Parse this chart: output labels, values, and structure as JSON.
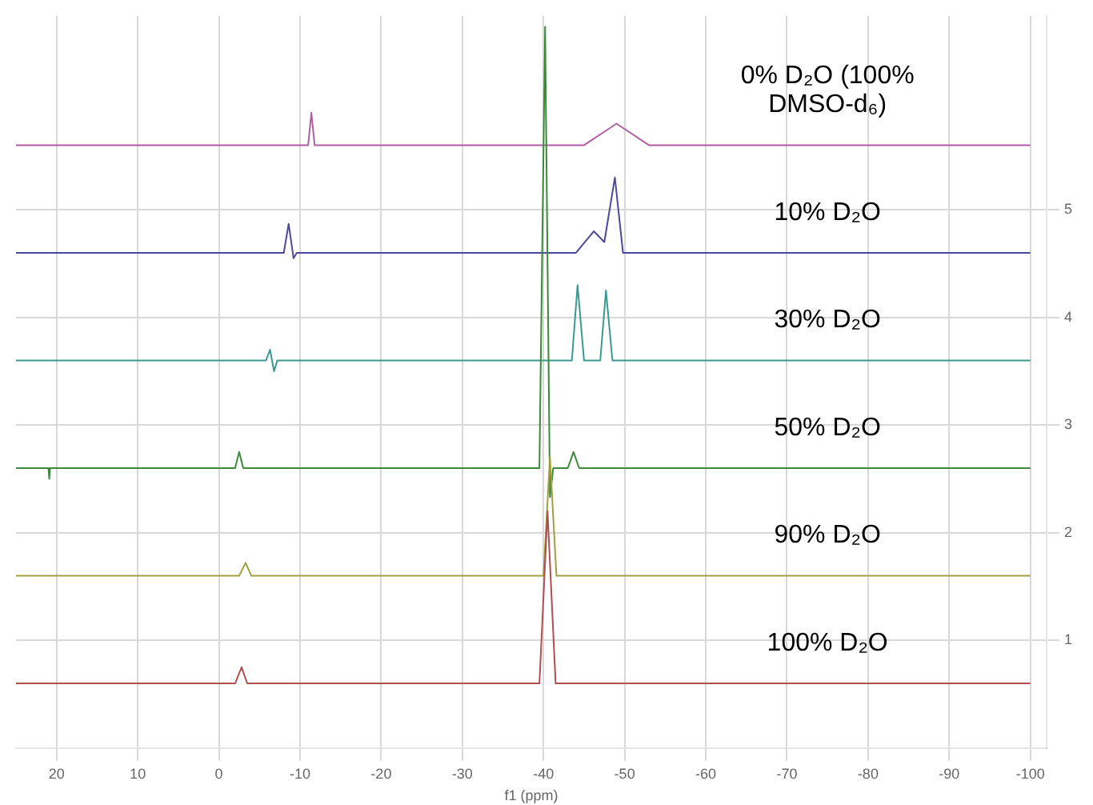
{
  "chart_data": {
    "type": "line",
    "xlabel": "f1 (ppm)",
    "xlim": [
      25,
      -102
    ],
    "xticks": [
      20,
      10,
      0,
      -10,
      -20,
      -30,
      -40,
      -50,
      -60,
      -70,
      -80,
      -90,
      -100
    ],
    "ylim": [
      0,
      6.8
    ],
    "yticks": [
      1,
      2,
      3,
      4,
      5
    ],
    "grid": true,
    "legend": false,
    "marker": "none",
    "series": [
      {
        "name": "100% D₂O",
        "color": "#b05050",
        "x": [
          25,
          -2,
          -2.8,
          -3.5,
          -39.5,
          -40.5,
          -41.5,
          -100
        ],
        "values": [
          0.6,
          0.6,
          0.75,
          0.6,
          0.6,
          2.2,
          0.6,
          0.6
        ]
      },
      {
        "name": "90% D₂O",
        "color": "#a0a040",
        "x": [
          25,
          -2.5,
          -3.3,
          -4,
          -40,
          -40.8,
          -41.6,
          -100
        ],
        "values": [
          1.6,
          1.6,
          1.72,
          1.6,
          1.6,
          2.7,
          1.6,
          1.6
        ]
      },
      {
        "name": "50% D₂O",
        "color": "#3a8a3a",
        "x": [
          25,
          21,
          20.9,
          20.8,
          -2,
          -2.5,
          -3,
          -39.5,
          -40.2,
          -40.8,
          -41.2,
          -43,
          -43.7,
          -44.4,
          -100
        ],
        "values": [
          2.6,
          2.6,
          2.5,
          2.6,
          2.6,
          2.75,
          2.6,
          2.6,
          6.7,
          2.33,
          2.6,
          2.6,
          2.75,
          2.6,
          2.6
        ]
      },
      {
        "name": "30% D₂O",
        "color": "#3a9a90",
        "x": [
          25,
          -5.8,
          -6.3,
          -6.8,
          -7.2,
          -43.5,
          -44.2,
          -45,
          -47,
          -47.7,
          -48.5,
          -100
        ],
        "values": [
          3.6,
          3.6,
          3.7,
          3.5,
          3.6,
          3.6,
          4.3,
          3.6,
          3.6,
          4.25,
          3.6,
          3.6
        ]
      },
      {
        "name": "10% D₂O",
        "color": "#4a4a9a",
        "x": [
          25,
          -8,
          -8.6,
          -9.2,
          -9.6,
          -44,
          -46.2,
          -47.5,
          -48.8,
          -49.8,
          -100
        ],
        "values": [
          4.6,
          4.6,
          4.87,
          4.55,
          4.6,
          4.6,
          4.8,
          4.7,
          5.3,
          4.6,
          4.6
        ]
      },
      {
        "name": "0% D₂O (100% DMSO-d₆)",
        "color": "#b05fa5",
        "x": [
          25,
          -11,
          -11.4,
          -11.8,
          -45,
          -49,
          -53,
          -100
        ],
        "values": [
          5.6,
          5.6,
          5.9,
          5.6,
          5.6,
          5.8,
          5.6,
          5.6
        ]
      }
    ]
  }
}
